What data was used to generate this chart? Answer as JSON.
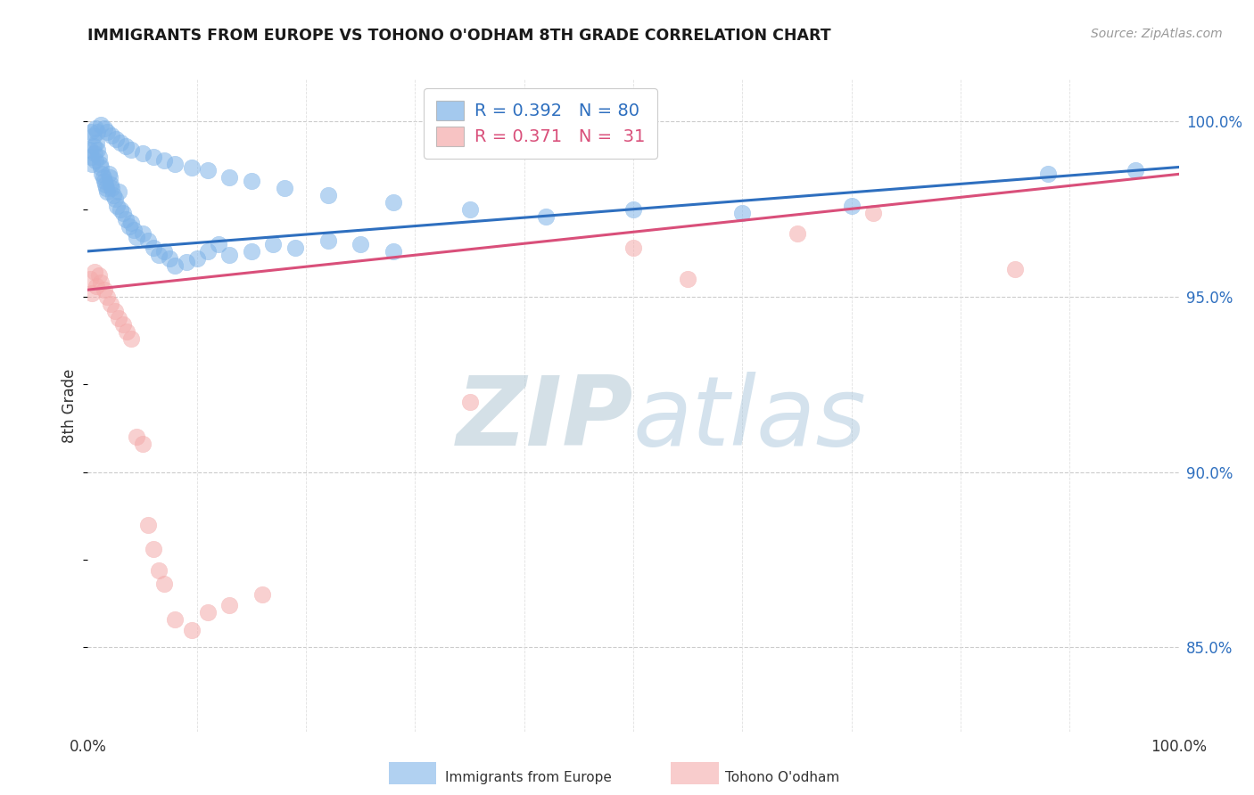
{
  "title": "IMMIGRANTS FROM EUROPE VS TOHONO O'ODHAM 8TH GRADE CORRELATION CHART",
  "source": "Source: ZipAtlas.com",
  "ylabel": "8th Grade",
  "ytick_labels": [
    "100.0%",
    "95.0%",
    "90.0%",
    "85.0%"
  ],
  "ytick_values": [
    1.0,
    0.95,
    0.9,
    0.85
  ],
  "xlim": [
    0.0,
    1.0
  ],
  "ylim": [
    0.826,
    1.012
  ],
  "blue_R": 0.392,
  "blue_N": 80,
  "pink_R": 0.371,
  "pink_N": 31,
  "blue_color": "#7EB3E8",
  "pink_color": "#F4AAAA",
  "blue_line_color": "#2E6FBF",
  "pink_line_color": "#D94F7A",
  "legend_label_blue": "Immigrants from Europe",
  "legend_label_pink": "Tohono O'odham",
  "blue_line_y_start": 0.963,
  "blue_line_y_end": 0.987,
  "pink_line_y_start": 0.952,
  "pink_line_y_end": 0.985,
  "blue_scatter_x": [
    0.002,
    0.003,
    0.004,
    0.005,
    0.006,
    0.007,
    0.008,
    0.009,
    0.01,
    0.011,
    0.012,
    0.013,
    0.014,
    0.015,
    0.016,
    0.017,
    0.018,
    0.019,
    0.02,
    0.021,
    0.022,
    0.023,
    0.025,
    0.027,
    0.028,
    0.03,
    0.032,
    0.035,
    0.038,
    0.04,
    0.042,
    0.045,
    0.05,
    0.055,
    0.06,
    0.065,
    0.07,
    0.075,
    0.08,
    0.09,
    0.1,
    0.11,
    0.12,
    0.13,
    0.15,
    0.17,
    0.19,
    0.22,
    0.25,
    0.28,
    0.003,
    0.005,
    0.007,
    0.009,
    0.012,
    0.015,
    0.018,
    0.022,
    0.026,
    0.03,
    0.035,
    0.04,
    0.05,
    0.06,
    0.07,
    0.08,
    0.095,
    0.11,
    0.13,
    0.15,
    0.18,
    0.22,
    0.28,
    0.35,
    0.42,
    0.5,
    0.6,
    0.7,
    0.88,
    0.96
  ],
  "blue_scatter_y": [
    0.992,
    0.99,
    0.988,
    0.993,
    0.991,
    0.989,
    0.994,
    0.992,
    0.99,
    0.988,
    0.987,
    0.985,
    0.984,
    0.983,
    0.982,
    0.981,
    0.98,
    0.985,
    0.984,
    0.982,
    0.981,
    0.979,
    0.978,
    0.976,
    0.98,
    0.975,
    0.974,
    0.972,
    0.97,
    0.971,
    0.969,
    0.967,
    0.968,
    0.966,
    0.964,
    0.962,
    0.963,
    0.961,
    0.959,
    0.96,
    0.961,
    0.963,
    0.965,
    0.962,
    0.963,
    0.965,
    0.964,
    0.966,
    0.965,
    0.963,
    0.997,
    0.996,
    0.998,
    0.997,
    0.999,
    0.998,
    0.997,
    0.996,
    0.995,
    0.994,
    0.993,
    0.992,
    0.991,
    0.99,
    0.989,
    0.988,
    0.987,
    0.986,
    0.984,
    0.983,
    0.981,
    0.979,
    0.977,
    0.975,
    0.973,
    0.975,
    0.974,
    0.976,
    0.985,
    0.986
  ],
  "pink_scatter_x": [
    0.002,
    0.004,
    0.006,
    0.008,
    0.01,
    0.012,
    0.015,
    0.018,
    0.021,
    0.025,
    0.028,
    0.032,
    0.036,
    0.04,
    0.045,
    0.05,
    0.055,
    0.06,
    0.065,
    0.07,
    0.08,
    0.095,
    0.11,
    0.13,
    0.16,
    0.35,
    0.5,
    0.55,
    0.65,
    0.72,
    0.85
  ],
  "pink_scatter_y": [
    0.955,
    0.951,
    0.957,
    0.953,
    0.956,
    0.954,
    0.952,
    0.95,
    0.948,
    0.946,
    0.944,
    0.942,
    0.94,
    0.938,
    0.91,
    0.908,
    0.885,
    0.878,
    0.872,
    0.868,
    0.858,
    0.855,
    0.86,
    0.862,
    0.865,
    0.92,
    0.964,
    0.955,
    0.968,
    0.974,
    0.958
  ]
}
